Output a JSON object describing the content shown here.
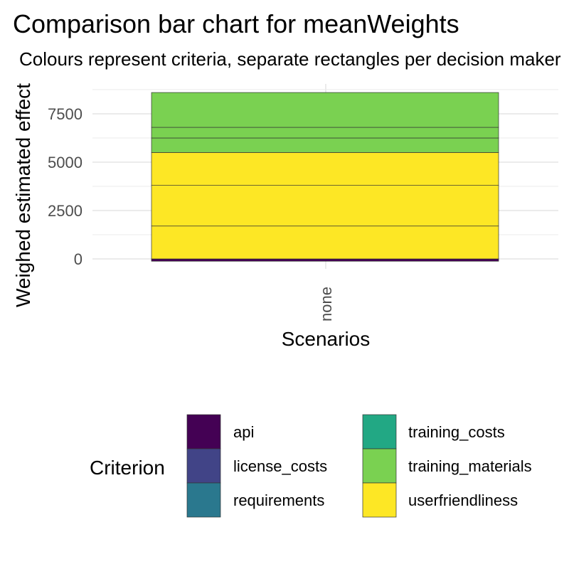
{
  "chart_data": {
    "type": "bar",
    "stacked": true,
    "title": "Comparison bar chart for meanWeights",
    "subtitle": "Colours represent criteria, separate rectangles per decision maker",
    "xlabel": "Scenarios",
    "ylabel": "Weighed estimated effect",
    "categories": [
      "none"
    ],
    "yticks": [
      0,
      2500,
      5000,
      7500
    ],
    "ylim": [
      -150,
      9000
    ],
    "grid": true,
    "legend": {
      "title": "Criterion",
      "position": "bottom",
      "columns": [
        [
          "api",
          "license_costs",
          "requirements"
        ],
        [
          "training_costs",
          "training_materials",
          "userfriendliness"
        ]
      ]
    },
    "segments": [
      {
        "criterion": "api",
        "from": -120,
        "to": 0
      },
      {
        "criterion": "userfriendliness",
        "from": 0,
        "to": 1700
      },
      {
        "criterion": "userfriendliness",
        "from": 1700,
        "to": 3800
      },
      {
        "criterion": "userfriendliness",
        "from": 3800,
        "to": 5500
      },
      {
        "criterion": "training_materials",
        "from": 5500,
        "to": 6250
      },
      {
        "criterion": "training_materials",
        "from": 6250,
        "to": 6800
      },
      {
        "criterion": "training_materials",
        "from": 6800,
        "to": 8600
      }
    ],
    "colors": {
      "api": "#440154",
      "license_costs": "#414487",
      "requirements": "#2a788e",
      "training_costs": "#22a884",
      "training_materials": "#7ad151",
      "userfriendliness": "#fde725"
    }
  }
}
